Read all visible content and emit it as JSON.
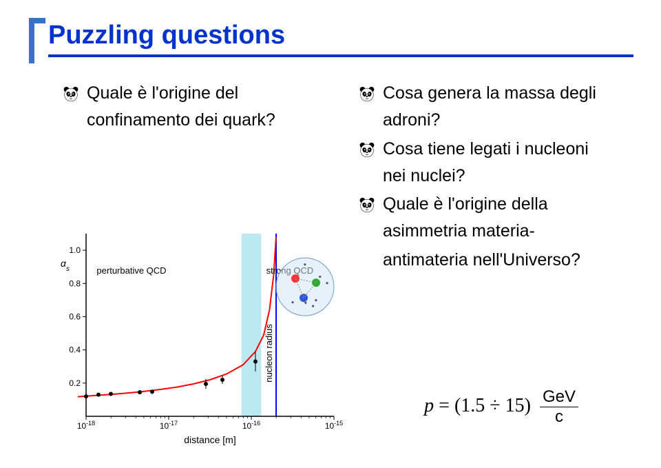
{
  "title": {
    "text": "Puzzling questions",
    "color": "#0033cc",
    "rule_color": "#0033cc",
    "bracket_color": "#3b72c9"
  },
  "left_bullets": [
    {
      "lines": [
        "Quale è l'origine del",
        "confinamento dei quark?"
      ]
    }
  ],
  "right_bullets": [
    {
      "lines": [
        "Cosa genera la massa degli",
        "adroni?"
      ]
    },
    {
      "lines": [
        "Cosa tiene legati i nucleoni",
        "nei nuclei?"
      ]
    },
    {
      "lines": [
        "Quale è l'origine della",
        "asimmetria materia-",
        "antimateria nell'Universo?"
      ]
    }
  ],
  "formula": {
    "lhs_var": "p",
    "equals": "=",
    "range": "(1.5 ÷ 15)",
    "frac_num": "GeV",
    "frac_den": "c"
  },
  "chart": {
    "type": "line",
    "xlabel": "distance [m]",
    "ylabel": "αs",
    "xlim_exp": [
      -18,
      -15
    ],
    "ylim": [
      0,
      1.1
    ],
    "ytick_step": 0.2,
    "xtick_exp": [
      -18,
      -17,
      -16,
      -15
    ],
    "background_color": "#ffffff",
    "axis_color": "#000000",
    "curve_color": "#ff0000",
    "curve_width": 2,
    "data_points_exp_x": [
      -18.0,
      -17.85,
      -17.7,
      -17.35,
      -17.2,
      -16.55,
      -16.35,
      -15.95
    ],
    "data_points_y": [
      0.12,
      0.13,
      0.135,
      0.145,
      0.148,
      0.195,
      0.22,
      0.33
    ],
    "point_errors": [
      0.01,
      0.01,
      0.01,
      0.012,
      0.012,
      0.03,
      0.025,
      0.06
    ],
    "marker_color": "#000000",
    "marker_size": 3,
    "band_x_exp": [
      -16.12,
      -15.88
    ],
    "band_color": "#8fd9e8",
    "band_opacity": 0.6,
    "vline_x_exp": -15.7,
    "vline_color": "#0000ff",
    "vline_width": 2,
    "label_perturbative": "perturbative QCD",
    "label_strong": "strong QCD",
    "label_nucleon": "nucleon radius",
    "label_color": "#000000",
    "curve_formula_x_exp": [
      -18.1,
      -17.9,
      -17.7,
      -17.5,
      -17.3,
      -17.1,
      -16.9,
      -16.7,
      -16.5,
      -16.3,
      -16.1,
      -15.95,
      -15.85,
      -15.78,
      -15.73,
      -15.7
    ],
    "curve_formula_y": [
      0.118,
      0.125,
      0.132,
      0.14,
      0.15,
      0.162,
      0.176,
      0.195,
      0.22,
      0.255,
      0.31,
      0.39,
      0.49,
      0.64,
      0.85,
      1.08
    ]
  },
  "nucleon_diagram": {
    "outer_color": "#cfe3f5",
    "quark_colors": [
      "#ff3333",
      "#33aa33",
      "#3355dd"
    ],
    "gluon_color": "#888888"
  }
}
